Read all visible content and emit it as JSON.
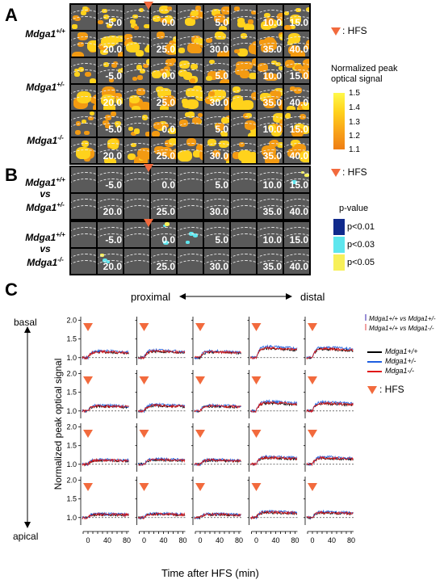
{
  "panel_a": {
    "letter": "A",
    "hfs_legend": ": HFS",
    "colorbar_title": "Normalized peak optical signal",
    "colorbar_ticks": [
      "1.5",
      "1.4",
      "1.3",
      "1.2",
      "1.1"
    ],
    "rows": [
      {
        "label": "Mdga1",
        "sup": "+/+"
      },
      {
        "label": "Mdga1",
        "sup": "+/-"
      },
      {
        "label": "Mdga1",
        "sup": "-/-"
      }
    ]
  },
  "panel_b": {
    "letter": "B",
    "hfs_legend": ": HFS",
    "pvalue_title": "p-value",
    "pvalues": [
      {
        "label": "p<0.01",
        "color": "#102a8c"
      },
      {
        "label": "p<0.03",
        "color": "#5ee6ee"
      },
      {
        "label": "p<0.05",
        "color": "#f7f05a"
      }
    ],
    "comparisons": [
      {
        "a": "Mdga1",
        "asup": "+/+",
        "vs": "vs",
        "b": "Mdga1",
        "bsup": "+/-"
      },
      {
        "a": "Mdga1",
        "asup": "+/+",
        "vs": "vs",
        "b": "Mdga1",
        "bsup": "-/-"
      }
    ]
  },
  "time_labels_row1": [
    "",
    "-5.0",
    "",
    "0.0",
    "",
    "5.0",
    "",
    "10.0",
    "15.0"
  ],
  "time_labels_row2": [
    "",
    "20.0",
    "",
    "25.0",
    "",
    "30.0",
    "",
    "35.0",
    "40.0"
  ],
  "panel_c": {
    "letter": "C",
    "proximal": "proximal",
    "distal": "distal",
    "basal": "basal",
    "apical": "apical",
    "ylabel": "Normalized peak optical signal",
    "xlabel": "Time after HFS (min)",
    "yticks": [
      "1.0",
      "1.5",
      "2.0"
    ],
    "xticks": [
      "0",
      "40",
      "80"
    ],
    "legend_sig": [
      {
        "text": "Mdga1+/+ vs Mdga1+/-",
        "color": "#9a8fd6"
      },
      {
        "text": "Mdga1+/+ vs Mdga1-/-",
        "color": "#f0a0a0"
      }
    ],
    "legend_lines": [
      {
        "name": "Mdga1+/+",
        "color": "#000000"
      },
      {
        "name": "Mdga1+/-",
        "color": "#1f5fe0"
      },
      {
        "name": "Mdga1-/-",
        "color": "#e01818"
      }
    ],
    "hfs_legend": ": HFS"
  },
  "colors": {
    "hfs_triangle": "#f26a3d",
    "bg_cell": "#5a5a5a",
    "heat_orange": "#f39a12",
    "heat_yellow": "#ffd21c"
  }
}
